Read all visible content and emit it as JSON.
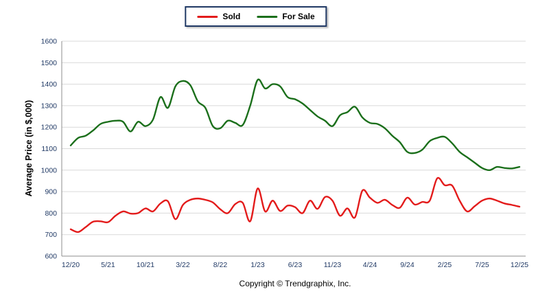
{
  "footer": {
    "copyright": "Copyright © Trendgraphix, Inc."
  },
  "chart_data": {
    "type": "line",
    "title": "",
    "xlabel": "",
    "ylabel": "Average Price (in $,000)",
    "ylim": [
      600,
      1600
    ],
    "ytick_step": 100,
    "grid": "horizontal",
    "legend_position": "top-center",
    "tick_label_color": "#1f3864",
    "gridline_color": "#d9d9d9",
    "axis_color": "#8c8c8c",
    "x_tick_every": 5,
    "x_tick_labels": [
      "12/20",
      "5/21",
      "10/21",
      "3/22",
      "8/22",
      "1/23",
      "6/23",
      "11/23",
      "4/24",
      "9/24",
      "2/25",
      "7/25",
      "12/25"
    ],
    "series": [
      {
        "name": "Sold",
        "color": "#e31b1b",
        "values": [
          725,
          712,
          735,
          760,
          762,
          758,
          788,
          808,
          798,
          800,
          822,
          808,
          845,
          855,
          772,
          838,
          862,
          868,
          862,
          850,
          818,
          800,
          842,
          848,
          762,
          915,
          808,
          858,
          810,
          835,
          828,
          800,
          858,
          820,
          875,
          858,
          788,
          822,
          780,
          905,
          872,
          848,
          862,
          838,
          825,
          872,
          840,
          852,
          858,
          962,
          930,
          928,
          858,
          808,
          832,
          858,
          868,
          858,
          845,
          838,
          830
        ]
      },
      {
        "name": "For Sale",
        "color": "#1b6f1b",
        "values": [
          1115,
          1150,
          1160,
          1185,
          1215,
          1225,
          1230,
          1225,
          1180,
          1225,
          1205,
          1235,
          1340,
          1290,
          1390,
          1415,
          1395,
          1320,
          1290,
          1205,
          1195,
          1230,
          1220,
          1210,
          1300,
          1420,
          1380,
          1400,
          1390,
          1340,
          1330,
          1310,
          1280,
          1250,
          1230,
          1205,
          1255,
          1270,
          1295,
          1245,
          1220,
          1215,
          1195,
          1160,
          1130,
          1085,
          1080,
          1095,
          1135,
          1150,
          1155,
          1125,
          1085,
          1060,
          1035,
          1010,
          1000,
          1015,
          1010,
          1008,
          1015
        ]
      }
    ]
  }
}
